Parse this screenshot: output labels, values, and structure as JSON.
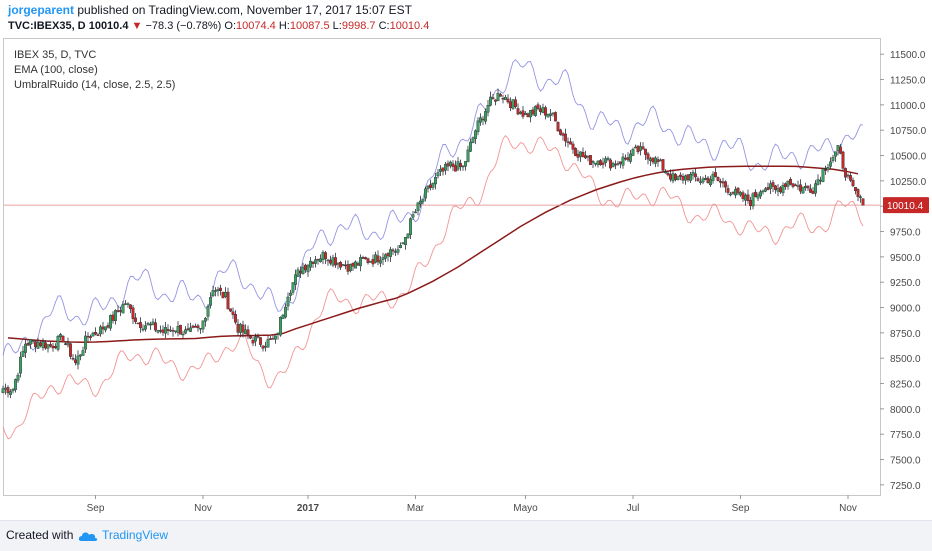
{
  "header": {
    "author": "jorgeparent",
    "published_text": "published on TradingView.com, November 17, 2017 15:07 EST",
    "symbol": "TVC:IBEX35, D",
    "last": "10010.4",
    "change_arrow": "▼",
    "change": "−78.3 (−0.78%)",
    "open_label": "O:",
    "open": "10074.4",
    "high_label": "H:",
    "high": "10087.5",
    "low_label": "L:",
    "low": "9998.7",
    "close_label": "C:",
    "close": "10010.4"
  },
  "legend": {
    "line1": "IBEX 35, D, TVC",
    "line2": "EMA (100, close)",
    "line3": "UmbralRuido (14, close, 2.5, 2.5)"
  },
  "footer": {
    "created_with": "Created with",
    "brand": "TradingView",
    "logo_icon": "tradingview-cloud-icon"
  },
  "colors": {
    "up_candle": "#3a9e5e",
    "down_candle": "#c62828",
    "ema": "#8b1a1a",
    "upper_band": "#8a8ae0",
    "lower_band": "#f08a8a",
    "price_line": "#e8a0a0",
    "price_badge": "#c62828",
    "accent": "#2196f3"
  },
  "chart_data": {
    "type": "candlestick",
    "ylim": [
      7150,
      11650
    ],
    "y_ticks": [
      7250,
      7500,
      7750,
      8000,
      8250,
      8500,
      8750,
      9000,
      9250,
      9500,
      9750,
      10000,
      10250,
      10500,
      10750,
      11000,
      11250,
      11500
    ],
    "y_tick_labels": [
      "7250.0",
      "7500.0",
      "7750.0",
      "8000.0",
      "8250.0",
      "8500.0",
      "8750.0",
      "9000.0",
      "9250.0",
      "9500.0",
      "9750.0",
      "10000.0",
      "10250.0",
      "10500.0",
      "10750.0",
      "11000.0",
      "11250.0",
      "11500.0"
    ],
    "x_labels": [
      "Sep",
      "Nov",
      "2017",
      "Mar",
      "Mayo",
      "Jul",
      "Sep",
      "Nov"
    ],
    "x_label_weeks": [
      7.0,
      15.6,
      24.0,
      32.6,
      41.4,
      50.0,
      58.6,
      67.2
    ],
    "weeks_total": 69,
    "last_price": 10010.4,
    "last_price_label": "10010.4",
    "weekly_close": [
      8200,
      8650,
      8660,
      8620,
      8700,
      8450,
      8720,
      8780,
      8900,
      9050,
      8850,
      8820,
      8760,
      8800,
      8740,
      8780,
      9200,
      9100,
      8800,
      8700,
      8650,
      8680,
      9150,
      9380,
      9480,
      9520,
      9450,
      9400,
      9460,
      9480,
      9560,
      9570,
      9900,
      10120,
      10300,
      10400,
      10380,
      10750,
      11000,
      11120,
      11000,
      10900,
      10950,
      10920,
      10700,
      10550,
      10450,
      10460,
      10420,
      10470,
      10550,
      10500,
      10380,
      10250,
      10300,
      10260,
      10280,
      10200,
      10100,
      10050,
      10200,
      10150,
      10250,
      10180,
      10180,
      10400,
      10550,
      10200,
      10010
    ],
    "ema": [
      8700,
      8690,
      8680,
      8670,
      8665,
      8660,
      8658,
      8660,
      8665,
      8672,
      8680,
      8685,
      8688,
      8690,
      8692,
      8694,
      8705,
      8715,
      8720,
      8722,
      8725,
      8728,
      8745,
      8790,
      8830,
      8870,
      8910,
      8950,
      8990,
      9025,
      9060,
      9090,
      9140,
      9200,
      9260,
      9330,
      9400,
      9480,
      9560,
      9640,
      9720,
      9800,
      9870,
      9940,
      10000,
      10060,
      10110,
      10160,
      10200,
      10240,
      10275,
      10305,
      10330,
      10350,
      10365,
      10375,
      10385,
      10390,
      10392,
      10394,
      10395,
      10395,
      10395,
      10393,
      10385,
      10375,
      10365,
      10345,
      10320
    ]
  }
}
